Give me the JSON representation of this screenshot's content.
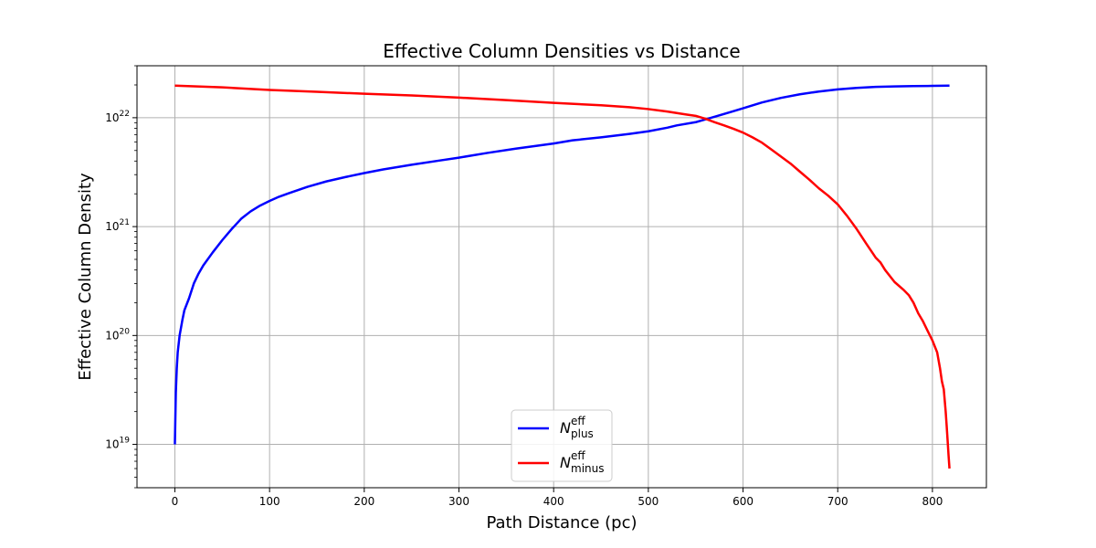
{
  "chart_data": {
    "type": "line",
    "title": "Effective Column Densities vs Distance",
    "xlabel": "Path Distance (pc)",
    "ylabel": "Effective Column Density",
    "xlim": [
      -40,
      857
    ],
    "ylim": [
      4e+18,
      3e+22
    ],
    "yscale": "log",
    "grid": true,
    "legend_position": "lower-center",
    "xticks": [
      0,
      100,
      200,
      300,
      400,
      500,
      600,
      700,
      800
    ],
    "xtick_labels": [
      "0",
      "100",
      "200",
      "300",
      "400",
      "500",
      "600",
      "700",
      "800"
    ],
    "yticks": [
      1e+19,
      1e+20,
      1e+21,
      1e+22
    ],
    "ytick_labels": [
      {
        "base": "10",
        "exp": "19"
      },
      {
        "base": "10",
        "exp": "20"
      },
      {
        "base": "10",
        "exp": "21"
      },
      {
        "base": "10",
        "exp": "22"
      }
    ],
    "series": [
      {
        "name": "N_plus^eff",
        "legend": {
          "main": "N",
          "sup": "eff",
          "sub": "plus"
        },
        "color": "#0000ff",
        "x": [
          0,
          1,
          2,
          3,
          5,
          8,
          10,
          15,
          20,
          25,
          30,
          40,
          50,
          60,
          70,
          80,
          90,
          100,
          110,
          120,
          140,
          160,
          180,
          200,
          220,
          250,
          280,
          300,
          330,
          360,
          400,
          420,
          450,
          480,
          500,
          520,
          530,
          550,
          570,
          590,
          600,
          620,
          640,
          660,
          680,
          700,
          720,
          740,
          760,
          780,
          800,
          818
        ],
        "y": [
          1e+19,
          3e+19,
          5e+19,
          7e+19,
          1e+20,
          1.4e+20,
          1.7e+20,
          2.2e+20,
          3e+20,
          3.7e+20,
          4.4e+20,
          5.8e+20,
          7.5e+20,
          9.5e+20,
          1.18e+21,
          1.38e+21,
          1.56e+21,
          1.72e+21,
          1.88e+21,
          2.02e+21,
          2.32e+21,
          2.6e+21,
          2.85e+21,
          3.1e+21,
          3.35e+21,
          3.7e+21,
          4.05e+21,
          4.3e+21,
          4.75e+21,
          5.2e+21,
          5.8e+21,
          6.2e+21,
          6.6e+21,
          7.1e+21,
          7.5e+21,
          8.1e+21,
          8.5e+21,
          9.1e+21,
          1.02e+22,
          1.15e+22,
          1.22e+22,
          1.38e+22,
          1.52e+22,
          1.64e+22,
          1.74e+22,
          1.82e+22,
          1.88e+22,
          1.92e+22,
          1.94e+22,
          1.95e+22,
          1.96e+22,
          1.97e+22
        ]
      },
      {
        "name": "N_minus^eff",
        "legend": {
          "main": "N",
          "sup": "eff",
          "sub": "minus"
        },
        "color": "#ff0000",
        "x": [
          0,
          50,
          100,
          150,
          200,
          250,
          300,
          350,
          400,
          450,
          480,
          500,
          520,
          540,
          550,
          560,
          570,
          580,
          590,
          600,
          610,
          620,
          630,
          640,
          650,
          660,
          670,
          680,
          690,
          700,
          710,
          720,
          730,
          740,
          745,
          750,
          760,
          770,
          775,
          780,
          785,
          790,
          795,
          800,
          805,
          808,
          810,
          812,
          814,
          815,
          816,
          817,
          818
        ],
        "y": [
          1.97e+22,
          1.9e+22,
          1.8e+22,
          1.73e+22,
          1.66e+22,
          1.6e+22,
          1.53e+22,
          1.45e+22,
          1.37e+22,
          1.3e+22,
          1.25e+22,
          1.2e+22,
          1.14e+22,
          1.07e+22,
          1.04e+22,
          9.8e+21,
          9.1e+21,
          8.5e+21,
          7.9e+21,
          7.3e+21,
          6.6e+21,
          5.9e+21,
          5.1e+21,
          4.4e+21,
          3.8e+21,
          3.2e+21,
          2.7e+21,
          2.25e+21,
          1.92e+21,
          1.6e+21,
          1.25e+21,
          9.5e+20,
          7e+20,
          5.2e+20,
          4.7e+20,
          4e+20,
          3.1e+20,
          2.6e+20,
          2.35e+20,
          2e+20,
          1.6e+20,
          1.35e+20,
          1.1e+20,
          9e+19,
          7e+19,
          5e+19,
          3.8e+19,
          3.2e+19,
          2e+19,
          1.5e+19,
          1.1e+19,
          8e+18,
          6e+18
        ]
      }
    ]
  }
}
